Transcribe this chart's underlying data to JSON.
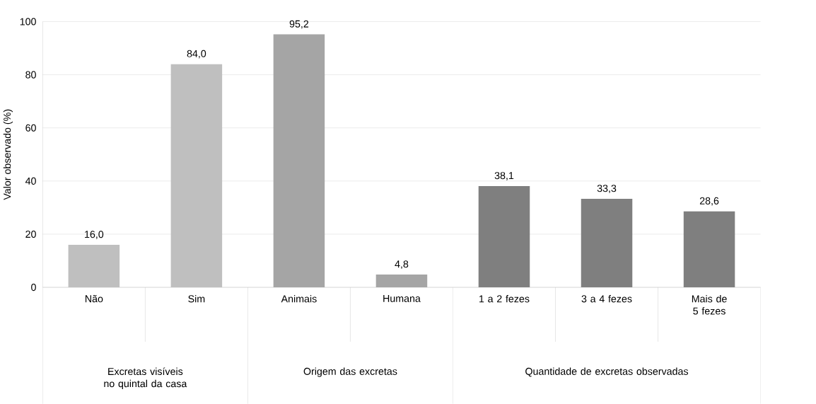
{
  "chart_data": {
    "type": "bar",
    "ylabel": "Valor observado (%)",
    "categories": [
      "Não",
      "Sim",
      "Animais",
      "Humana",
      "1 a 2 fezes",
      "3 a 4 fezes",
      "Mais de 5 fezes"
    ],
    "values": [
      16.0,
      84.0,
      95.2,
      4.8,
      38.1,
      33.3,
      28.6
    ],
    "value_labels": [
      "16,0",
      "84,0",
      "95,2",
      "4,8",
      "38,1",
      "33,3",
      "28,6"
    ],
    "colors": [
      "#bfbfbf",
      "#bfbfbf",
      "#a5a5a5",
      "#a5a5a5",
      "#7f7f7f",
      "#7f7f7f",
      "#7f7f7f"
    ],
    "annotations": [
      "Excretas visíveis no quintal da casa",
      "Origem das excretas",
      "Quantidade de excretas observadas"
    ],
    "ylim": [
      0,
      100
    ],
    "yticks": [
      0,
      20,
      40,
      60,
      80,
      100
    ],
    "grid": "y"
  }
}
